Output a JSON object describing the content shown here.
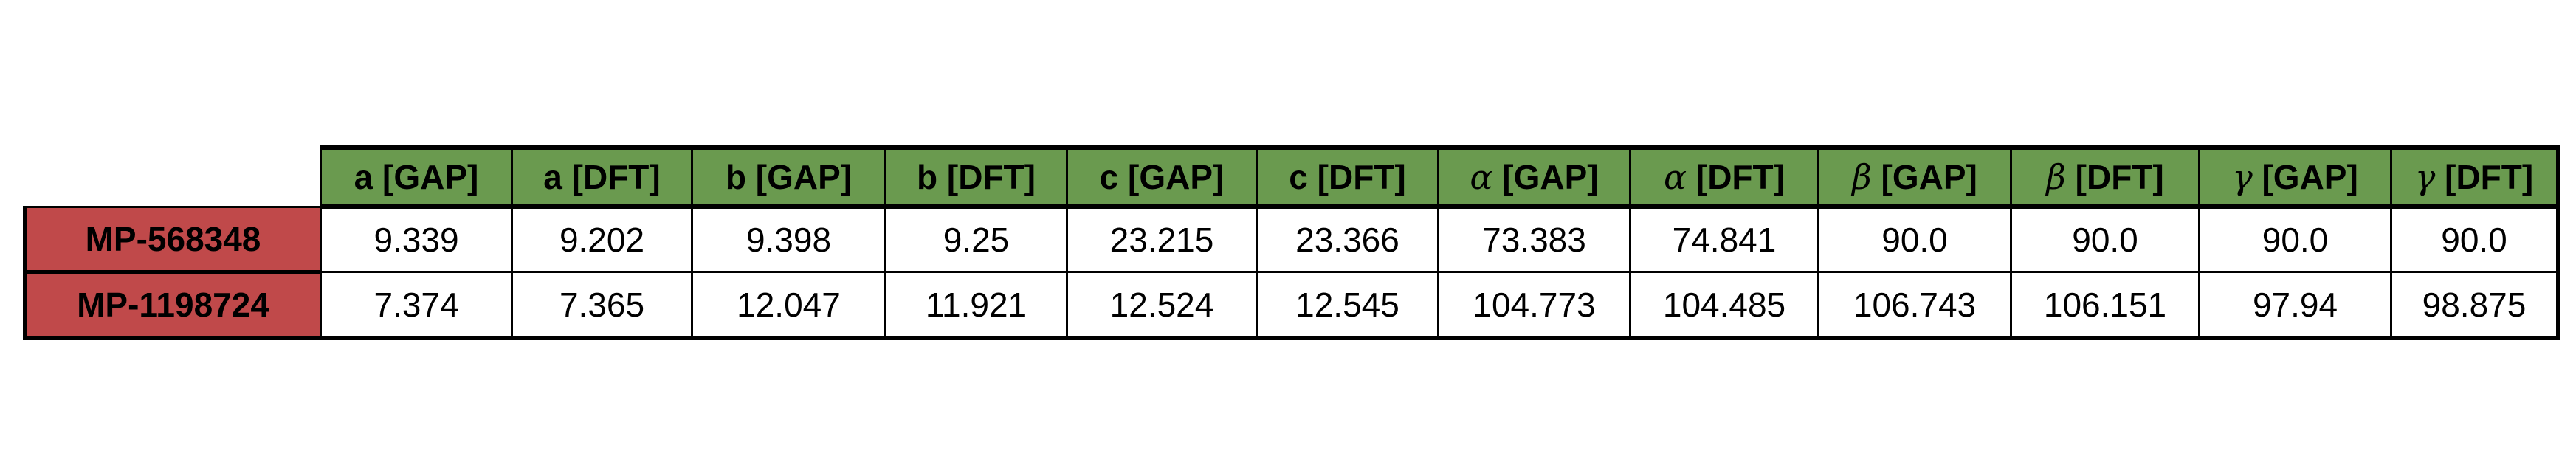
{
  "table": {
    "columns": [
      {
        "symbol": "a",
        "label": "[GAP]"
      },
      {
        "symbol": "a",
        "label": "[DFT]"
      },
      {
        "symbol": "b",
        "label": "[GAP]"
      },
      {
        "symbol": "b",
        "label": "[DFT]"
      },
      {
        "symbol": "c",
        "label": "[GAP]"
      },
      {
        "symbol": "c",
        "label": "[DFT]"
      },
      {
        "symbol": "α",
        "label": "[GAP]"
      },
      {
        "symbol": "α",
        "label": "[DFT]"
      },
      {
        "symbol": "β",
        "label": "[GAP]"
      },
      {
        "symbol": "β",
        "label": "[DFT]"
      },
      {
        "symbol": "γ",
        "label": "[GAP]"
      },
      {
        "symbol": "γ",
        "label": "[DFT]"
      }
    ],
    "rows": [
      {
        "id": "MP-568348",
        "values": [
          "9.339",
          "9.202",
          "9.398",
          "9.25",
          "23.215",
          "23.366",
          "73.383",
          "74.841",
          "90.0",
          "90.0",
          "90.0",
          "90.0"
        ]
      },
      {
        "id": "MP-1198724",
        "values": [
          "7.374",
          "7.365",
          "12.047",
          "11.921",
          "12.524",
          "12.545",
          "104.773",
          "104.485",
          "106.743",
          "106.151",
          "97.94",
          "98.875"
        ]
      }
    ],
    "colors": {
      "header": "#6a9a4f",
      "row_header": "#c0494a"
    }
  }
}
